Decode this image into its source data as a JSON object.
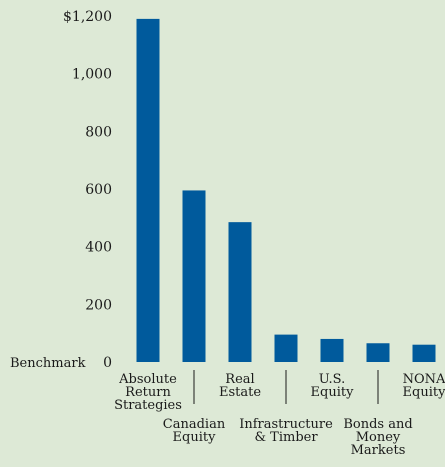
{
  "chart_data": {
    "type": "bar",
    "title": "",
    "xlabel": "",
    "ylabel": "",
    "ylim": [
      0,
      1200
    ],
    "y_tick_values": [
      0,
      200,
      400,
      600,
      800,
      1000,
      1200
    ],
    "y_tick_labels": [
      "0",
      "200",
      "400",
      "600",
      "800",
      "1,000",
      "$1,200"
    ],
    "baseline_label": "Benchmark",
    "grid": false,
    "bar_color": "#005a9c",
    "categories": [
      {
        "lines": [
          "Absolute",
          "Return",
          "Strategies"
        ]
      },
      {
        "lines": [
          "Canadian",
          "Equity"
        ]
      },
      {
        "lines": [
          "Real",
          "Estate"
        ]
      },
      {
        "lines": [
          "Infrastructure",
          "& Timber"
        ]
      },
      {
        "lines": [
          "U.S.",
          "Equity"
        ]
      },
      {
        "lines": [
          "Bonds and",
          "Money",
          "Markets"
        ]
      },
      {
        "lines": [
          "NONA",
          "Equity"
        ]
      }
    ],
    "values": [
      1190,
      595,
      485,
      95,
      80,
      65,
      60
    ]
  }
}
